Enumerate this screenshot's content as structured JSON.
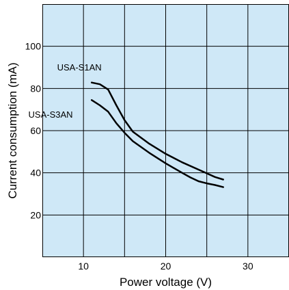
{
  "chart_data": {
    "type": "line",
    "xlabel": "Power voltage (V)",
    "ylabel": "Current consumption (mA)",
    "xlim": [
      5,
      35
    ],
    "ylim": [
      0,
      120
    ],
    "x_ticks": [
      10,
      20,
      30
    ],
    "y_ticks": [
      20,
      40,
      60,
      80,
      100
    ],
    "grid": true,
    "background_color": "#cfe8f7",
    "line_color": "#000000",
    "series": [
      {
        "name": "USA-S1AN",
        "x": [
          11,
          12,
          13,
          14,
          15,
          16,
          18,
          20,
          22,
          24,
          26,
          27
        ],
        "y": [
          82.8,
          82.0,
          79.5,
          72.0,
          65.0,
          59.5,
          53.8,
          49.0,
          45.0,
          41.5,
          38.0,
          36.8
        ]
      },
      {
        "name": "USA-S3AN",
        "x": [
          11,
          12,
          13,
          14,
          15,
          16,
          18,
          20,
          22,
          23,
          24,
          25,
          26,
          27
        ],
        "y": [
          74.5,
          72.0,
          69.0,
          63.5,
          59.0,
          55.0,
          49.5,
          44.5,
          40.0,
          37.8,
          36.0,
          35.0,
          34.2,
          33.2
        ]
      }
    ]
  }
}
